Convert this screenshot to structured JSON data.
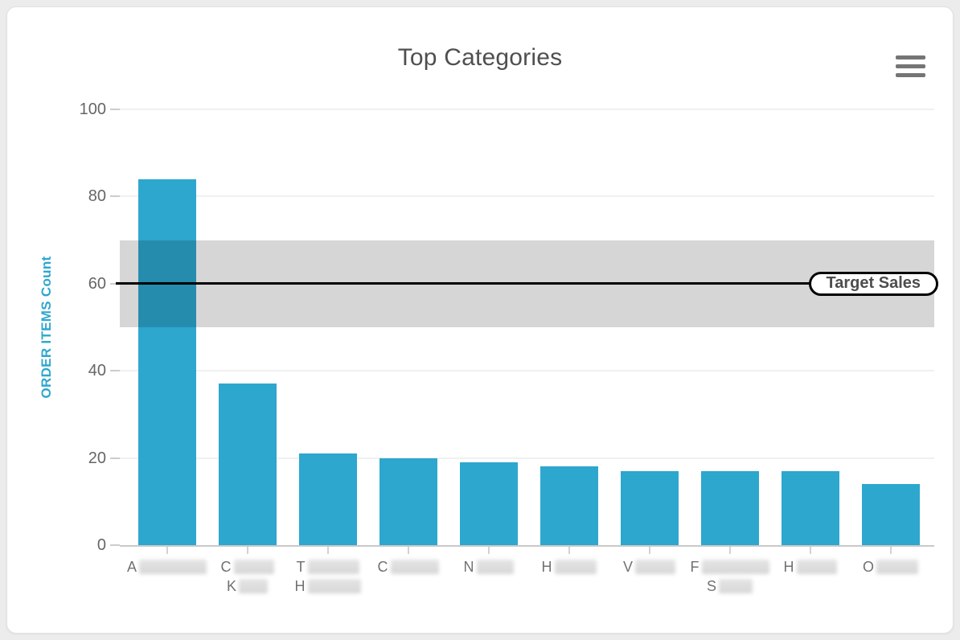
{
  "card": {
    "title": "Top Categories",
    "menu_icon": "hamburger-menu"
  },
  "chart_data": {
    "type": "bar",
    "title": "Top Categories",
    "xlabel": "",
    "ylabel": "ORDER ITEMS Count",
    "ylim": [
      0,
      100
    ],
    "yticks": [
      0,
      20,
      40,
      60,
      80,
      100
    ],
    "grid": true,
    "legend": "none",
    "bar_color": "#2da7ce",
    "values": [
      84,
      37,
      21,
      20,
      19,
      18,
      17,
      17,
      17,
      14
    ],
    "categories": [
      {
        "redacted": true,
        "lines": [
          {
            "text": "A",
            "blur_width": 84
          }
        ]
      },
      {
        "redacted": true,
        "lines": [
          {
            "text": "C",
            "blur_width": 50
          },
          {
            "text": "K",
            "blur_width": 36
          }
        ]
      },
      {
        "redacted": true,
        "lines": [
          {
            "text": "T",
            "blur_width": 64
          },
          {
            "text": "H",
            "blur_width": 66
          }
        ]
      },
      {
        "redacted": true,
        "lines": [
          {
            "text": "C",
            "blur_width": 60
          }
        ]
      },
      {
        "redacted": true,
        "lines": [
          {
            "text": "N",
            "blur_width": 46
          }
        ]
      },
      {
        "redacted": true,
        "lines": [
          {
            "text": "H",
            "blur_width": 52
          }
        ]
      },
      {
        "redacted": true,
        "lines": [
          {
            "text": "V",
            "blur_width": 50
          }
        ]
      },
      {
        "redacted": true,
        "lines": [
          {
            "text": "F",
            "blur_width": 84
          },
          {
            "text": "S",
            "blur_width": 42
          }
        ]
      },
      {
        "redacted": true,
        "lines": [
          {
            "text": "H",
            "blur_width": 50
          }
        ]
      },
      {
        "redacted": true,
        "lines": [
          {
            "text": "O",
            "blur_width": 52
          }
        ]
      }
    ],
    "plot_band": {
      "from": 50,
      "to": 70,
      "color": "#d6d6d6"
    },
    "target_line": {
      "value": 60,
      "label": "Target Sales",
      "color": "#000000"
    }
  },
  "colors": {
    "bar": "#2da7ce",
    "band": "#d6d6d6",
    "target_line": "#000000",
    "title_text": "#4f4f4f",
    "axis_tick_text": "#666666",
    "ylabel_text": "#2da7ce",
    "grid": "#f0f0f0",
    "menu_icon": "#757575",
    "card_bg": "#ffffff",
    "page_bg": "#ececec"
  }
}
